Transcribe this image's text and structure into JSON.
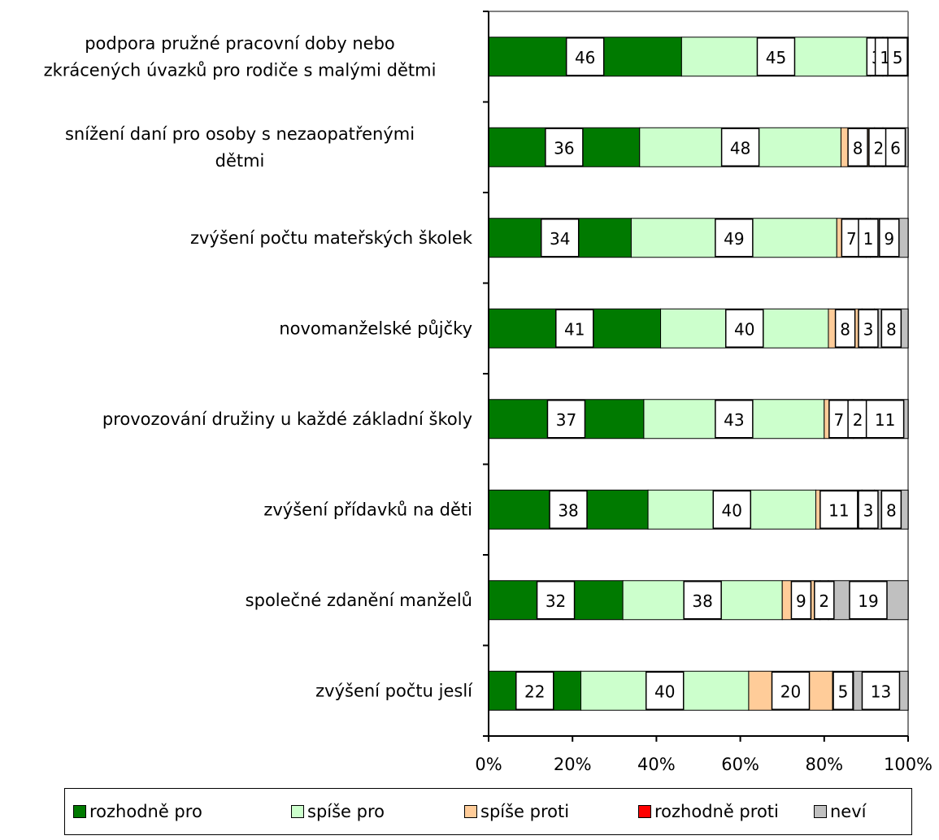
{
  "chart_data": {
    "type": "bar",
    "orientation": "horizontal",
    "stacked": "percent",
    "categories": [
      "podpora pružné pracovní doby nebo zkrácených úvazků pro rodiče s malými dětmi",
      "snížení daní pro osoby s nezaopatřenými dětmi",
      "zvýšení počtu mateřských školek",
      "novomanželské půjčky",
      "provozování družiny u každé základní školy",
      "zvýšení přídavků na děti",
      "společné zdanění manželů",
      "zvýšení počtu jeslí"
    ],
    "category_lines": [
      [
        "podpora pružné pracovní doby nebo",
        "zkrácených úvazků pro rodiče s malými dětmi"
      ],
      [
        "snížení daní pro osoby s nezaopatřenými",
        "dětmi"
      ],
      [
        "zvýšení počtu mateřských školek"
      ],
      [
        "novomanželské půjčky"
      ],
      [
        "provozování družiny u každé základní školy"
      ],
      [
        "zvýšení přídavků na děti"
      ],
      [
        "společné zdanění manželů"
      ],
      [
        "zvýšení počtu jeslí"
      ]
    ],
    "series": [
      {
        "name": "rozhodně pro",
        "color": "#007A00",
        "values": [
          46,
          36,
          34,
          41,
          37,
          38,
          32,
          22
        ]
      },
      {
        "name": "spíše pro",
        "color": "#CCFFCC",
        "values": [
          45,
          48,
          49,
          40,
          43,
          40,
          38,
          40
        ]
      },
      {
        "name": "spíše proti",
        "color": "#FFCC99",
        "values": [
          3,
          8,
          7,
          8,
          7,
          11,
          9,
          20
        ]
      },
      {
        "name": "rozhodně proti",
        "color": "#FF0000",
        "values": [
          1,
          2,
          1,
          3,
          2,
          3,
          2,
          5
        ]
      },
      {
        "name": "neví",
        "color": "#C0C0C0",
        "values": [
          5,
          6,
          9,
          8,
          11,
          8,
          19,
          13
        ]
      }
    ],
    "xlim": [
      0,
      100
    ],
    "xticks": [
      "0%",
      "20%",
      "40%",
      "60%",
      "80%",
      "100%"
    ],
    "legend_position": "bottom",
    "grid": false
  }
}
